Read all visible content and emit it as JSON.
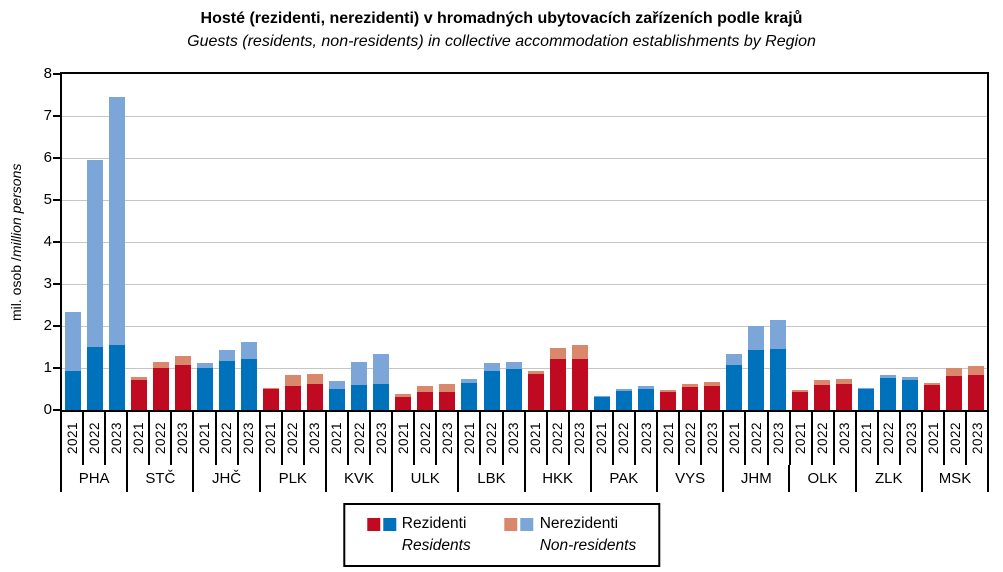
{
  "title": "Hosté (rezidenti, nerezidenti) v hromadných ubytovacích zařízeních podle krajů",
  "subtitle": "Guests (residents, non-residents) in collective accommodation establishments by Region",
  "y_axis": {
    "label_cs": "mil. osob / ",
    "label_en": "million persons",
    "min": 0,
    "max": 8,
    "step": 1,
    "tick_labels": [
      "0",
      "1",
      "2",
      "3",
      "4",
      "5",
      "6",
      "7",
      "8"
    ]
  },
  "colors": {
    "blue": "#0072BC",
    "light_blue": "#7CA5D8",
    "red": "#C00A21",
    "salmon": "#D9886C",
    "gridline": "#C6C6C6",
    "axis": "#000000"
  },
  "legend": {
    "entries": [
      {
        "label_cs": "Rezidenti",
        "label_en": "Residents",
        "swatches": [
          "red",
          "blue"
        ]
      },
      {
        "label_cs": "Nerezidenti",
        "label_en": "Non-residents",
        "swatches": [
          "salmon",
          "light_blue"
        ]
      }
    ]
  },
  "chart_data": {
    "type": "bar",
    "stacked": true,
    "grid": true,
    "ylim": [
      0,
      8
    ],
    "ylabel": "mil. osob / million persons",
    "years": [
      "2021",
      "2022",
      "2023"
    ],
    "series_meaning": {
      "residents": "Rezidenti / Residents",
      "non_residents": "Nerezidenti / Non-residents"
    },
    "regions": [
      {
        "code": "PHA",
        "scheme": "blue",
        "residents": [
          0.93,
          1.5,
          1.55
        ],
        "non_residents": [
          1.4,
          4.45,
          5.9
        ]
      },
      {
        "code": "STČ",
        "scheme": "red",
        "residents": [
          0.72,
          0.99,
          1.07
        ],
        "non_residents": [
          0.06,
          0.16,
          0.22
        ]
      },
      {
        "code": "JHČ",
        "scheme": "blue",
        "residents": [
          1.0,
          1.17,
          1.21
        ],
        "non_residents": [
          0.13,
          0.27,
          0.42
        ]
      },
      {
        "code": "PLK",
        "scheme": "red",
        "residents": [
          0.49,
          0.58,
          0.61
        ],
        "non_residents": [
          0.04,
          0.25,
          0.26
        ]
      },
      {
        "code": "KVK",
        "scheme": "blue",
        "residents": [
          0.5,
          0.59,
          0.63
        ],
        "non_residents": [
          0.2,
          0.56,
          0.7
        ]
      },
      {
        "code": "ULK",
        "scheme": "red",
        "residents": [
          0.32,
          0.42,
          0.44
        ],
        "non_residents": [
          0.07,
          0.16,
          0.17
        ]
      },
      {
        "code": "LBK",
        "scheme": "blue",
        "residents": [
          0.65,
          0.93,
          0.97
        ],
        "non_residents": [
          0.08,
          0.18,
          0.18
        ]
      },
      {
        "code": "HKK",
        "scheme": "red",
        "residents": [
          0.85,
          1.21,
          1.22
        ],
        "non_residents": [
          0.09,
          0.27,
          0.32
        ]
      },
      {
        "code": "PAK",
        "scheme": "blue",
        "residents": [
          0.31,
          0.45,
          0.51
        ],
        "non_residents": [
          0.03,
          0.05,
          0.06
        ]
      },
      {
        "code": "VYS",
        "scheme": "red",
        "residents": [
          0.43,
          0.56,
          0.58
        ],
        "non_residents": [
          0.04,
          0.06,
          0.08
        ]
      },
      {
        "code": "JHM",
        "scheme": "blue",
        "residents": [
          1.08,
          1.44,
          1.46
        ],
        "non_residents": [
          0.25,
          0.56,
          0.69
        ]
      },
      {
        "code": "OLK",
        "scheme": "red",
        "residents": [
          0.42,
          0.59,
          0.63
        ],
        "non_residents": [
          0.06,
          0.12,
          0.12
        ]
      },
      {
        "code": "ZLK",
        "scheme": "blue",
        "residents": [
          0.51,
          0.77,
          0.71
        ],
        "non_residents": [
          0.02,
          0.06,
          0.08
        ]
      },
      {
        "code": "MSK",
        "scheme": "red",
        "residents": [
          0.59,
          0.82,
          0.83
        ],
        "non_residents": [
          0.06,
          0.18,
          0.22
        ]
      }
    ]
  }
}
